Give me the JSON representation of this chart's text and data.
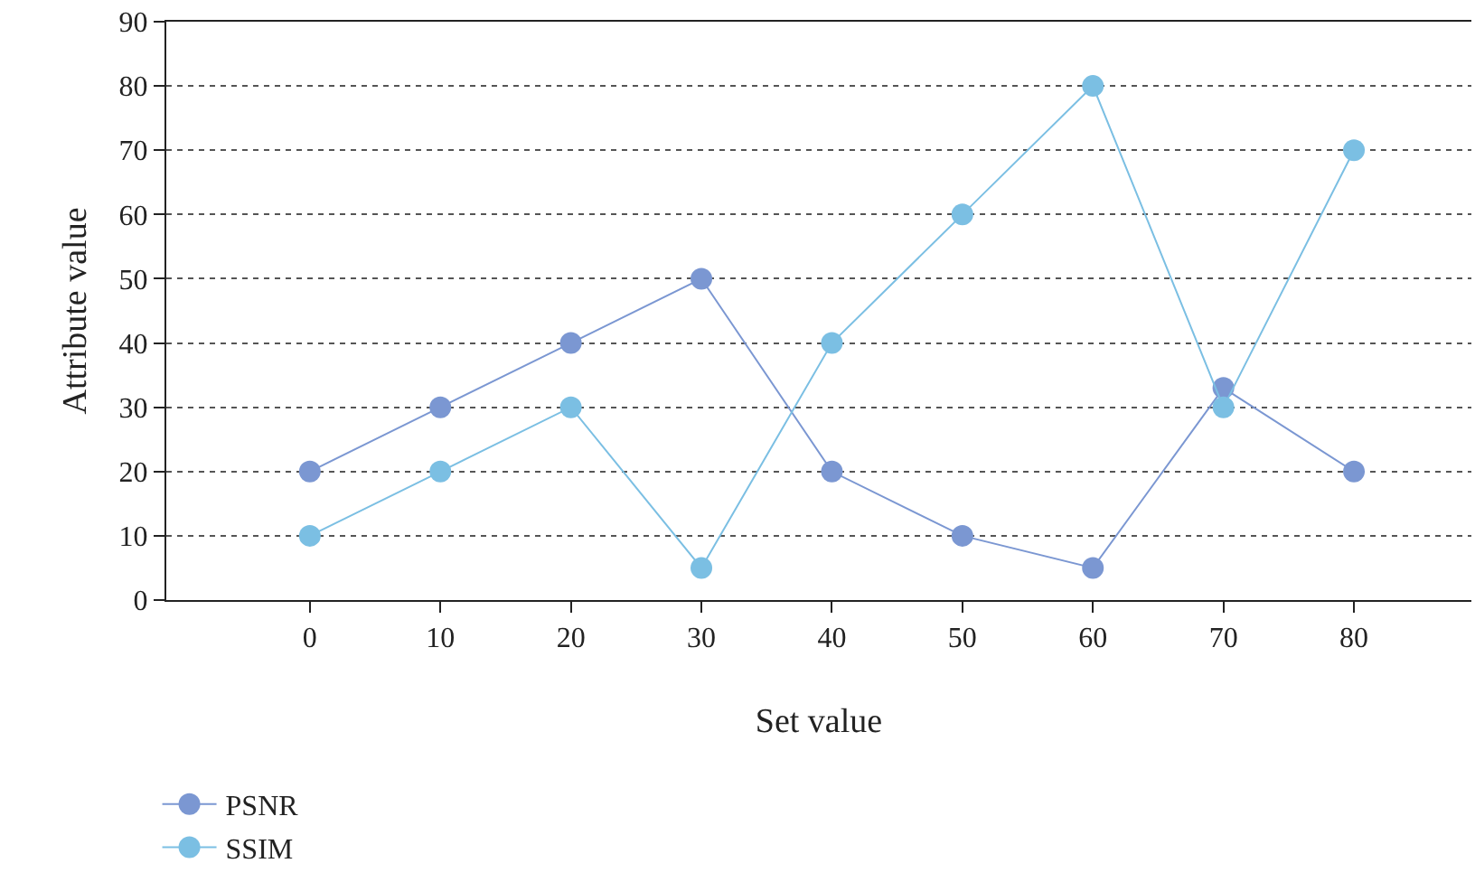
{
  "chart_data": {
    "type": "line",
    "xlabel": "Set value",
    "ylabel": "Attribute value",
    "x": [
      0,
      10,
      20,
      30,
      40,
      50,
      60,
      70,
      80
    ],
    "series": [
      {
        "name": "PSNR",
        "color": "#7b97d2",
        "values": [
          20,
          30,
          40,
          50,
          20,
          10,
          5,
          33,
          20
        ]
      },
      {
        "name": "SSIM",
        "color": "#7bbfe3",
        "values": [
          10,
          20,
          30,
          5,
          40,
          60,
          80,
          30,
          70
        ]
      }
    ],
    "xlim": [
      -11,
      89
    ],
    "xticks": [
      0,
      10,
      20,
      30,
      40,
      50,
      60,
      70,
      80
    ],
    "ylim": [
      0,
      90
    ],
    "yticks": [
      0,
      10,
      20,
      30,
      40,
      50,
      60,
      70,
      80,
      90
    ],
    "grid": "y",
    "legend": "bottom left",
    "marker": "circle",
    "line_style": "solid"
  }
}
